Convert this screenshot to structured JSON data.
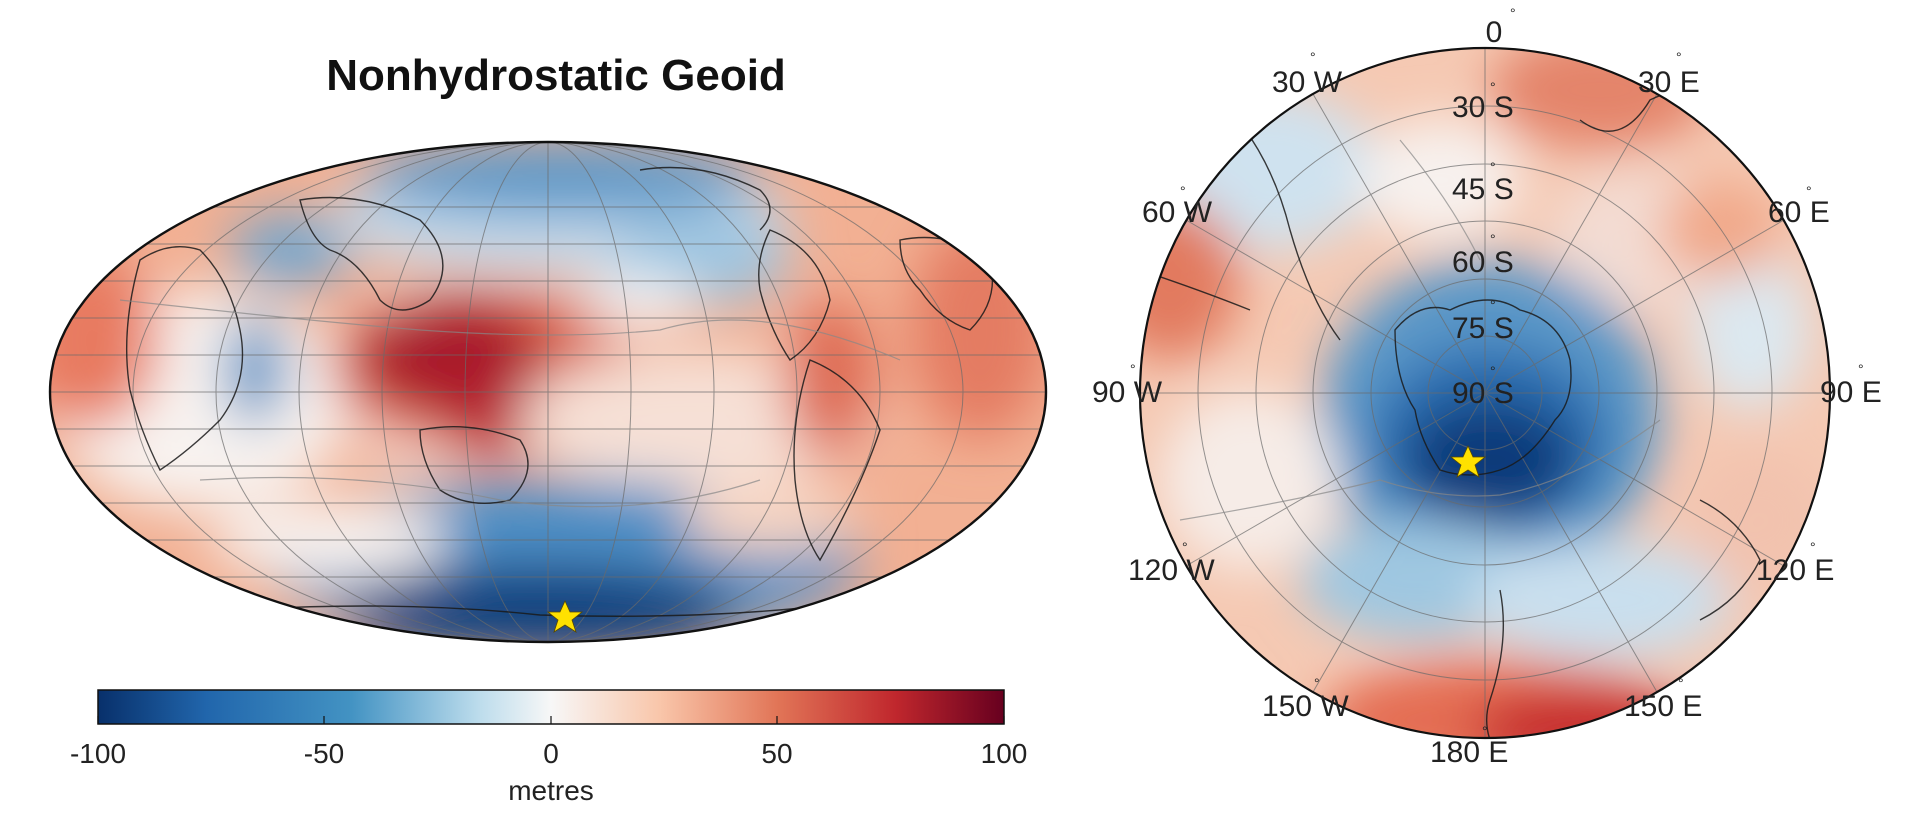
{
  "left_map": {
    "title": "Nonhydrostatic Geoid",
    "projection": "mollweide",
    "marker": "yellow-star"
  },
  "colorbar": {
    "ticks": [
      "-100",
      "-50",
      "0",
      "50",
      "100"
    ],
    "label": "metres",
    "min": -100,
    "max": 100,
    "colors": [
      "#08306b",
      "#2166ac",
      "#4393c3",
      "#92c5de",
      "#f7f7f7",
      "#f4a582",
      "#d6604d",
      "#b2182b",
      "#67001f"
    ]
  },
  "right_map": {
    "projection": "south-polar-stereographic",
    "lon_labels": [
      {
        "deg": "°",
        "text": "0"
      },
      {
        "deg": "°",
        "text": "30  E"
      },
      {
        "deg": "°",
        "text": "60  E"
      },
      {
        "deg": "°",
        "text": "90  E"
      },
      {
        "deg": "°",
        "text": "120  E"
      },
      {
        "deg": "°",
        "text": "150  E"
      },
      {
        "deg": "°",
        "text": "180  E"
      },
      {
        "deg": "°",
        "text": "150  W"
      },
      {
        "deg": "°",
        "text": "120  W"
      },
      {
        "deg": "°",
        "text": "90  W"
      },
      {
        "deg": "°",
        "text": "60  W"
      },
      {
        "deg": "°",
        "text": "30  W"
      }
    ],
    "lat_labels": [
      {
        "deg": "°",
        "text": "30  S"
      },
      {
        "deg": "°",
        "text": "45  S"
      },
      {
        "deg": "°",
        "text": "60  S"
      },
      {
        "deg": "°",
        "text": "75  S"
      },
      {
        "deg": "°",
        "text": "90  S"
      }
    ],
    "marker": "yellow-star"
  },
  "marker_color": "#ffe100"
}
